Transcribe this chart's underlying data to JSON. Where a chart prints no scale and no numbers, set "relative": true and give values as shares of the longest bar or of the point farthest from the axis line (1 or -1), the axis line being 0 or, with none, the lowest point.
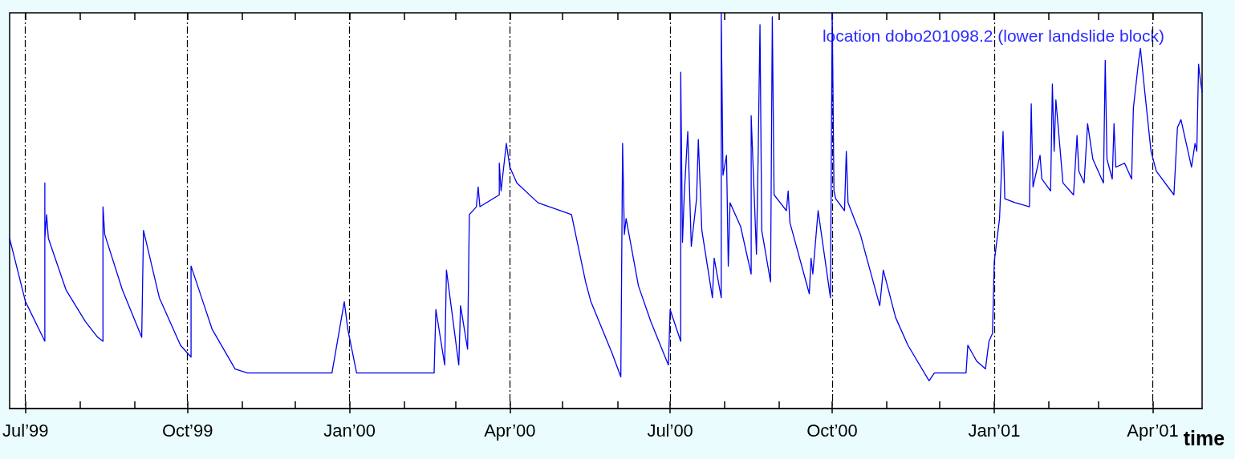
{
  "chart_data": {
    "type": "line",
    "relative": true,
    "xlabel": "time",
    "annotations": [
      "location dobo201098.2 (lower landslide block)"
    ],
    "color": "#0000ee",
    "line_style": "solid",
    "grid": "x",
    "xlim": [
      "1999-06-22",
      "2001-04-29"
    ],
    "xticks": [
      {
        "value": "1999-07-01",
        "label": "Jul’99"
      },
      {
        "value": "1999-08-01",
        "label": null
      },
      {
        "value": "1999-09-01",
        "label": null
      },
      {
        "value": "1999-10-01",
        "label": "Oct’99"
      },
      {
        "value": "1999-11-01",
        "label": null
      },
      {
        "value": "1999-12-01",
        "label": null
      },
      {
        "value": "2000-01-01",
        "label": "Jan’00"
      },
      {
        "value": "2000-02-01",
        "label": null
      },
      {
        "value": "2000-03-01",
        "label": null
      },
      {
        "value": "2000-04-01",
        "label": "Apr’00"
      },
      {
        "value": "2000-05-01",
        "label": null
      },
      {
        "value": "2000-06-01",
        "label": null
      },
      {
        "value": "2000-07-01",
        "label": "Jul’00"
      },
      {
        "value": "2000-08-01",
        "label": null
      },
      {
        "value": "2000-09-01",
        "label": null
      },
      {
        "value": "2000-10-01",
        "label": "Oct’00"
      },
      {
        "value": "2000-11-01",
        "label": null
      },
      {
        "value": "2000-12-01",
        "label": null
      },
      {
        "value": "2001-01-01",
        "label": "Jan’01"
      },
      {
        "value": "2001-02-01",
        "label": null
      },
      {
        "value": "2001-03-01",
        "label": null
      },
      {
        "value": "2001-04-01",
        "label": "Apr’01"
      }
    ],
    "x": [
      "1999-06-22",
      "1999-07-01",
      "1999-07-12",
      "1999-07-12",
      "1999-07-12",
      "1999-07-13",
      "1999-07-14",
      "1999-07-24",
      "1999-08-04",
      "1999-08-11",
      "1999-08-14",
      "1999-08-14",
      "1999-08-15",
      "1999-08-25",
      "1999-09-05",
      "1999-09-06",
      "1999-09-15",
      "1999-09-27",
      "1999-10-03",
      "1999-10-03",
      "1999-10-15",
      "1999-10-28",
      "1999-11-04",
      "1999-12-22",
      "1999-12-29",
      "1999-12-31",
      "2000-01-05",
      "2000-02-18",
      "2000-02-19",
      "2000-02-24",
      "2000-02-25",
      "2000-03-03",
      "2000-03-04",
      "2000-03-08",
      "2000-03-09",
      "2000-03-13",
      "2000-03-14",
      "2000-03-15",
      "2000-03-26",
      "2000-03-26",
      "2000-03-27",
      "2000-03-30",
      "2000-04-01",
      "2000-04-05",
      "2000-04-17",
      "2000-05-06",
      "2000-05-14",
      "2000-05-17",
      "2000-05-29",
      "2000-06-03",
      "2000-06-04",
      "2000-06-05",
      "2000-06-06",
      "2000-06-13",
      "2000-06-20",
      "2000-06-30",
      "2000-07-01",
      "2000-07-07",
      "2000-07-07",
      "2000-07-08",
      "2000-07-09",
      "2000-07-11",
      "2000-07-13",
      "2000-07-16",
      "2000-07-17",
      "2000-07-19",
      "2000-07-25",
      "2000-07-26",
      "2000-07-30",
      "2000-07-30",
      "2000-07-31",
      "2000-08-02",
      "2000-08-03",
      "2000-08-04",
      "2000-08-10",
      "2000-08-16",
      "2000-08-16",
      "2000-08-19",
      "2000-08-20",
      "2000-08-21",
      "2000-08-22",
      "2000-08-27",
      "2000-08-28",
      "2000-08-29",
      "2000-09-05",
      "2000-09-06",
      "2000-09-07",
      "2000-09-18",
      "2000-09-19",
      "2000-09-20",
      "2000-09-23",
      "2000-09-30",
      "2000-10-01",
      "2000-10-02",
      "2000-10-03",
      "2000-10-08",
      "2000-10-09",
      "2000-10-10",
      "2000-10-17",
      "2000-10-20",
      "2000-10-28",
      "2000-10-30",
      "2000-11-06",
      "2000-11-13",
      "2000-11-25",
      "2000-11-28",
      "2000-12-16",
      "2000-12-17",
      "2000-12-22",
      "2000-12-27",
      "2000-12-29",
      "2000-12-31",
      "2001-01-01",
      "2001-01-04",
      "2001-01-06",
      "2001-01-07",
      "2001-01-13",
      "2001-01-21",
      "2001-01-22",
      "2001-01-23",
      "2001-01-27",
      "2001-01-28",
      "2001-02-02",
      "2001-02-03",
      "2001-02-04",
      "2001-02-05",
      "2001-02-09",
      "2001-02-15",
      "2001-02-17",
      "2001-02-18",
      "2001-02-21",
      "2001-02-23",
      "2001-02-26",
      "2001-03-04",
      "2001-03-05",
      "2001-03-06",
      "2001-03-09",
      "2001-03-10",
      "2001-03-11",
      "2001-03-16",
      "2001-03-20",
      "2001-03-21",
      "2001-03-24",
      "2001-03-25",
      "2001-03-27",
      "2001-03-31",
      "2001-04-03",
      "2001-04-13",
      "2001-04-15",
      "2001-04-17",
      "2001-04-23",
      "2001-04-25",
      "2001-04-26",
      "2001-04-27",
      "2001-04-28",
      "2001-04-29"
    ],
    "values": [
      0.43,
      0.27,
      0.17,
      0.57,
      0.43,
      0.49,
      0.43,
      0.3,
      0.22,
      0.18,
      0.17,
      0.51,
      0.44,
      0.3,
      0.18,
      0.45,
      0.28,
      0.16,
      0.13,
      0.36,
      0.2,
      0.1,
      0.09,
      0.09,
      0.27,
      0.2,
      0.09,
      0.09,
      0.25,
      0.11,
      0.35,
      0.11,
      0.26,
      0.15,
      0.49,
      0.51,
      0.56,
      0.51,
      0.54,
      0.62,
      0.55,
      0.67,
      0.61,
      0.57,
      0.52,
      0.49,
      0.32,
      0.27,
      0.14,
      0.08,
      0.67,
      0.44,
      0.48,
      0.31,
      0.22,
      0.11,
      0.25,
      0.17,
      0.85,
      0.42,
      0.54,
      0.7,
      0.41,
      0.53,
      0.68,
      0.45,
      0.28,
      0.38,
      0.28,
      1,
      0.59,
      0.64,
      0.36,
      0.52,
      0.46,
      0.34,
      0.74,
      0.39,
      0.65,
      0.97,
      0.45,
      0.32,
      0.99,
      0.54,
      0.5,
      0.55,
      0.47,
      0.29,
      0.38,
      0.34,
      0.5,
      0.28,
      1,
      0.55,
      0.53,
      0.5,
      0.65,
      0.52,
      0.44,
      0.39,
      0.26,
      0.35,
      0.23,
      0.16,
      0.07,
      0.09,
      0.09,
      0.16,
      0.12,
      0.1,
      0.17,
      0.19,
      0.37,
      0.48,
      0.7,
      0.53,
      0.52,
      0.51,
      0.77,
      0.56,
      0.64,
      0.58,
      0.55,
      0.82,
      0.65,
      0.78,
      0.57,
      0.54,
      0.69,
      0.6,
      0.57,
      0.72,
      0.63,
      0.57,
      0.88,
      0.63,
      0.58,
      0.72,
      0.61,
      0.62,
      0.58,
      0.76,
      0.88,
      0.91,
      0.82,
      0.65,
      0.6,
      0.54,
      0.71,
      0.73,
      0.61,
      0.67,
      0.65,
      0.87,
      0.83,
      0.8
    ]
  }
}
